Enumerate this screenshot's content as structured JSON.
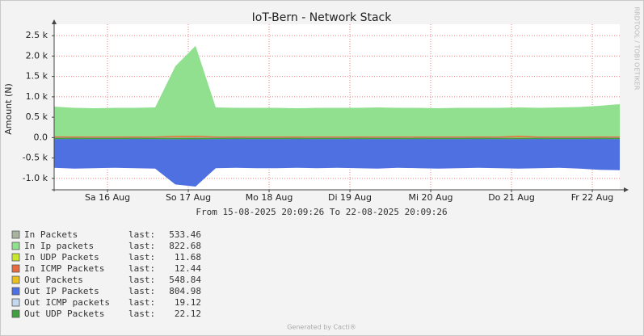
{
  "chart_data": {
    "type": "area",
    "title": "IoT-Bern - Network Stack",
    "y_label": "Amount (N)",
    "subtitle": "From 15-08-2025 20:09:26 To 22-08-2025 20:09:26",
    "side_label": "RRDTOOL / TOBI OETIKER",
    "footer": "Generated by Cacti®",
    "legend_last_label": "last:",
    "x": [
      "2025-08-15T20:09",
      "2025-08-16T02:09",
      "2025-08-16T08:09",
      "2025-08-16T14:09",
      "2025-08-16T20:09",
      "2025-08-17T02:09",
      "2025-08-17T08:09",
      "2025-08-17T14:09",
      "2025-08-17T20:09",
      "2025-08-18T02:09",
      "2025-08-18T08:09",
      "2025-08-18T14:09",
      "2025-08-18T20:09",
      "2025-08-19T02:09",
      "2025-08-19T08:09",
      "2025-08-19T14:09",
      "2025-08-19T20:09",
      "2025-08-20T02:09",
      "2025-08-20T08:09",
      "2025-08-20T14:09",
      "2025-08-20T20:09",
      "2025-08-21T02:09",
      "2025-08-21T08:09",
      "2025-08-21T14:09",
      "2025-08-21T20:09",
      "2025-08-22T02:09",
      "2025-08-22T08:09",
      "2025-08-22T14:09",
      "2025-08-22T20:09"
    ],
    "xlim": [
      "2025-08-15T20:09",
      "2025-08-22T20:09"
    ],
    "xticks": [
      {
        "value": "2025-08-16T12:00",
        "label": "Sa 16 Aug"
      },
      {
        "value": "2025-08-17T12:00",
        "label": "So 17 Aug"
      },
      {
        "value": "2025-08-18T12:00",
        "label": "Mo 18 Aug"
      },
      {
        "value": "2025-08-19T12:00",
        "label": "Di 19 Aug"
      },
      {
        "value": "2025-08-20T12:00",
        "label": "Mi 20 Aug"
      },
      {
        "value": "2025-08-21T12:00",
        "label": "Do 21 Aug"
      },
      {
        "value": "2025-08-22T12:00",
        "label": "Fr 22 Aug"
      }
    ],
    "ylim": [
      -1280,
      2780
    ],
    "yticks": [
      {
        "value": 2500,
        "label": "2.5 k"
      },
      {
        "value": 2000,
        "label": "2.0 k"
      },
      {
        "value": 1500,
        "label": "1.5 k"
      },
      {
        "value": 1000,
        "label": "1.0 k"
      },
      {
        "value": 500,
        "label": "0.5 k"
      },
      {
        "value": 0,
        "label": "0.0"
      },
      {
        "value": -500,
        "label": "-0.5 k"
      },
      {
        "value": -1000,
        "label": "-1.0 k"
      }
    ],
    "grid": true,
    "series": [
      {
        "name": "In Packets",
        "color": "#a8b4a0",
        "last": 533.46,
        "values": [
          540,
          520,
          515,
          520,
          525,
          530,
          1300,
          1600,
          530,
          520,
          525,
          520,
          515,
          520,
          525,
          520,
          530,
          520,
          525,
          515,
          520,
          525,
          520,
          530,
          520,
          530,
          535,
          540,
          533
        ]
      },
      {
        "name": "In Ip packets",
        "color": "#90e090",
        "last": 822.68,
        "values": [
          760,
          730,
          720,
          730,
          730,
          740,
          1750,
          2250,
          740,
          730,
          730,
          730,
          720,
          730,
          730,
          730,
          740,
          730,
          730,
          720,
          730,
          730,
          730,
          740,
          730,
          740,
          750,
          780,
          820
        ]
      },
      {
        "name": "In UDP Packets",
        "color": "#c8e830",
        "last": 11.68,
        "values": [
          12,
          11,
          12,
          12,
          11,
          12,
          14,
          15,
          12,
          11,
          12,
          12,
          11,
          12,
          12,
          11,
          12,
          12,
          11,
          12,
          12,
          11,
          12,
          12,
          11,
          12,
          12,
          11,
          12
        ]
      },
      {
        "name": "In ICMP Packets",
        "color": "#e86a40",
        "last": 12.44,
        "values": [
          14,
          12,
          12,
          13,
          12,
          12,
          28,
          30,
          13,
          12,
          12,
          12,
          13,
          12,
          12,
          12,
          13,
          12,
          12,
          12,
          13,
          12,
          12,
          30,
          12,
          12,
          13,
          12,
          12
        ]
      },
      {
        "name": "Out Packets",
        "color": "#e8c020",
        "last": 548.84,
        "values": [
          -540,
          -550,
          -545,
          -540,
          -545,
          -550,
          -900,
          -950,
          -545,
          -540,
          -545,
          -545,
          -540,
          -545,
          -540,
          -545,
          -550,
          -540,
          -545,
          -550,
          -545,
          -540,
          -545,
          -550,
          -545,
          -540,
          -550,
          -555,
          -549
        ]
      },
      {
        "name": "Out IP Packets",
        "color": "#4f70e0",
        "last": 804.98,
        "values": [
          -740,
          -760,
          -750,
          -740,
          -750,
          -760,
          -1150,
          -1200,
          -750,
          -740,
          -750,
          -750,
          -740,
          -750,
          -740,
          -750,
          -760,
          -740,
          -750,
          -760,
          -750,
          -740,
          -750,
          -760,
          -750,
          -740,
          -760,
          -790,
          -800
        ]
      },
      {
        "name": "Out ICMP packets",
        "color": "#c4d8f0",
        "last": 19.12,
        "values": [
          -19,
          -18,
          -19,
          -19,
          -18,
          -19,
          -22,
          -24,
          -19,
          -18,
          -19,
          -19,
          -18,
          -19,
          -19,
          -18,
          -19,
          -19,
          -18,
          -19,
          -19,
          -18,
          -19,
          -19,
          -18,
          -19,
          -19,
          -18,
          -19
        ]
      },
      {
        "name": "Out UDP Packets",
        "color": "#40a040",
        "last": 22.12,
        "values": [
          -22,
          -21,
          -22,
          -22,
          -21,
          -22,
          -26,
          -28,
          -22,
          -21,
          -22,
          -22,
          -21,
          -22,
          -22,
          -21,
          -22,
          -22,
          -21,
          -22,
          -22,
          -21,
          -22,
          -22,
          -21,
          -22,
          -22,
          -21,
          -22
        ]
      }
    ]
  }
}
